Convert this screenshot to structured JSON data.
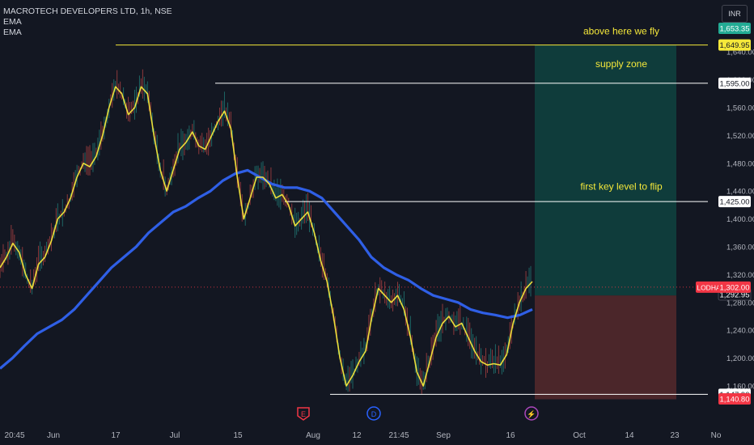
{
  "header": {
    "title": "MACROTECH DEVELOPERS LTD, 1h, NSE",
    "indicators": [
      "EMA",
      "EMA"
    ],
    "currency": "INR"
  },
  "colors": {
    "background": "#131722",
    "ema_fast": "#f5e83a",
    "ema_slow": "#2f5fe6",
    "candle_up": "#26a69a",
    "candle_down": "#ef5350",
    "zone_up": "#0f4a44",
    "zone_down": "#5a2a2d",
    "level_line": "#ffffff",
    "top_level_line": "#f5e83a",
    "annotation_text": "#f5e83a",
    "price_line": "#f23645"
  },
  "chart_data": {
    "type": "line",
    "symbol": "LODHA",
    "price_axis": {
      "ylim": [
        1120,
        1680
      ],
      "ticks": [
        1160,
        1200,
        1240,
        1280,
        1320,
        1360,
        1400,
        1440,
        1480,
        1520,
        1560,
        1600,
        1640
      ]
    },
    "time_axis": {
      "labels": [
        "20:45",
        "Jun",
        "17",
        "Jul",
        "15",
        "Aug",
        "12",
        "21:45",
        "Sep",
        "16",
        "Oct",
        "14",
        "23",
        "No"
      ]
    },
    "series": [
      {
        "key": "ema_fast",
        "values": [
          1330,
          1345,
          1365,
          1352,
          1320,
          1300,
          1335,
          1345,
          1368,
          1400,
          1410,
          1430,
          1460,
          1480,
          1475,
          1490,
          1520,
          1560,
          1590,
          1580,
          1550,
          1560,
          1590,
          1580,
          1520,
          1470,
          1440,
          1470,
          1500,
          1510,
          1525,
          1505,
          1500,
          1520,
          1540,
          1555,
          1530,
          1460,
          1400,
          1430,
          1460,
          1460,
          1450,
          1430,
          1435,
          1420,
          1390,
          1400,
          1410,
          1380,
          1340,
          1310,
          1260,
          1200,
          1160,
          1175,
          1195,
          1210,
          1260,
          1300,
          1290,
          1280,
          1290,
          1270,
          1230,
          1180,
          1160,
          1195,
          1230,
          1250,
          1260,
          1245,
          1250,
          1230,
          1210,
          1195,
          1190,
          1192,
          1190,
          1205,
          1250,
          1280,
          1300,
          1310
        ]
      },
      {
        "key": "ema_slow",
        "values": [
          1185,
          1200,
          1218,
          1235,
          1245,
          1255,
          1270,
          1290,
          1310,
          1330,
          1345,
          1360,
          1380,
          1395,
          1410,
          1418,
          1430,
          1440,
          1455,
          1465,
          1470,
          1460,
          1450,
          1445,
          1445,
          1440,
          1430,
          1410,
          1390,
          1370,
          1345,
          1330,
          1320,
          1312,
          1300,
          1290,
          1285,
          1280,
          1270,
          1265,
          1262,
          1258,
          1262,
          1270
        ]
      }
    ],
    "price_levels": [
      {
        "price": 1649.95,
        "label": "1,649.95",
        "type": "level"
      },
      {
        "price": 1595.0,
        "label": "1,595.00",
        "type": "level"
      },
      {
        "price": 1425.0,
        "label": "1,425.00",
        "type": "level"
      },
      {
        "price": 1147.9,
        "label": "1,147.90",
        "type": "level"
      }
    ],
    "price_badges": [
      {
        "price": 1653.35,
        "label": "1,653.35"
      },
      {
        "price": 1292.95,
        "label": "1,292.95"
      },
      {
        "price": 1140.8,
        "label": "1,140.80"
      }
    ],
    "current_price": {
      "symbol": "LODHA",
      "price": 1302.0,
      "label": "1,302.00"
    },
    "zones": [
      {
        "name": "target",
        "from": 1290,
        "to": 1649.95
      },
      {
        "name": "stop",
        "from": 1140.8,
        "to": 1290
      }
    ],
    "annotations": [
      {
        "text": "above here we fly",
        "price": 1665
      },
      {
        "text": "supply zone",
        "price": 1618
      },
      {
        "text": "first key level to flip",
        "price": 1442
      }
    ],
    "event_markers": [
      "E",
      "D",
      "⚡"
    ]
  }
}
